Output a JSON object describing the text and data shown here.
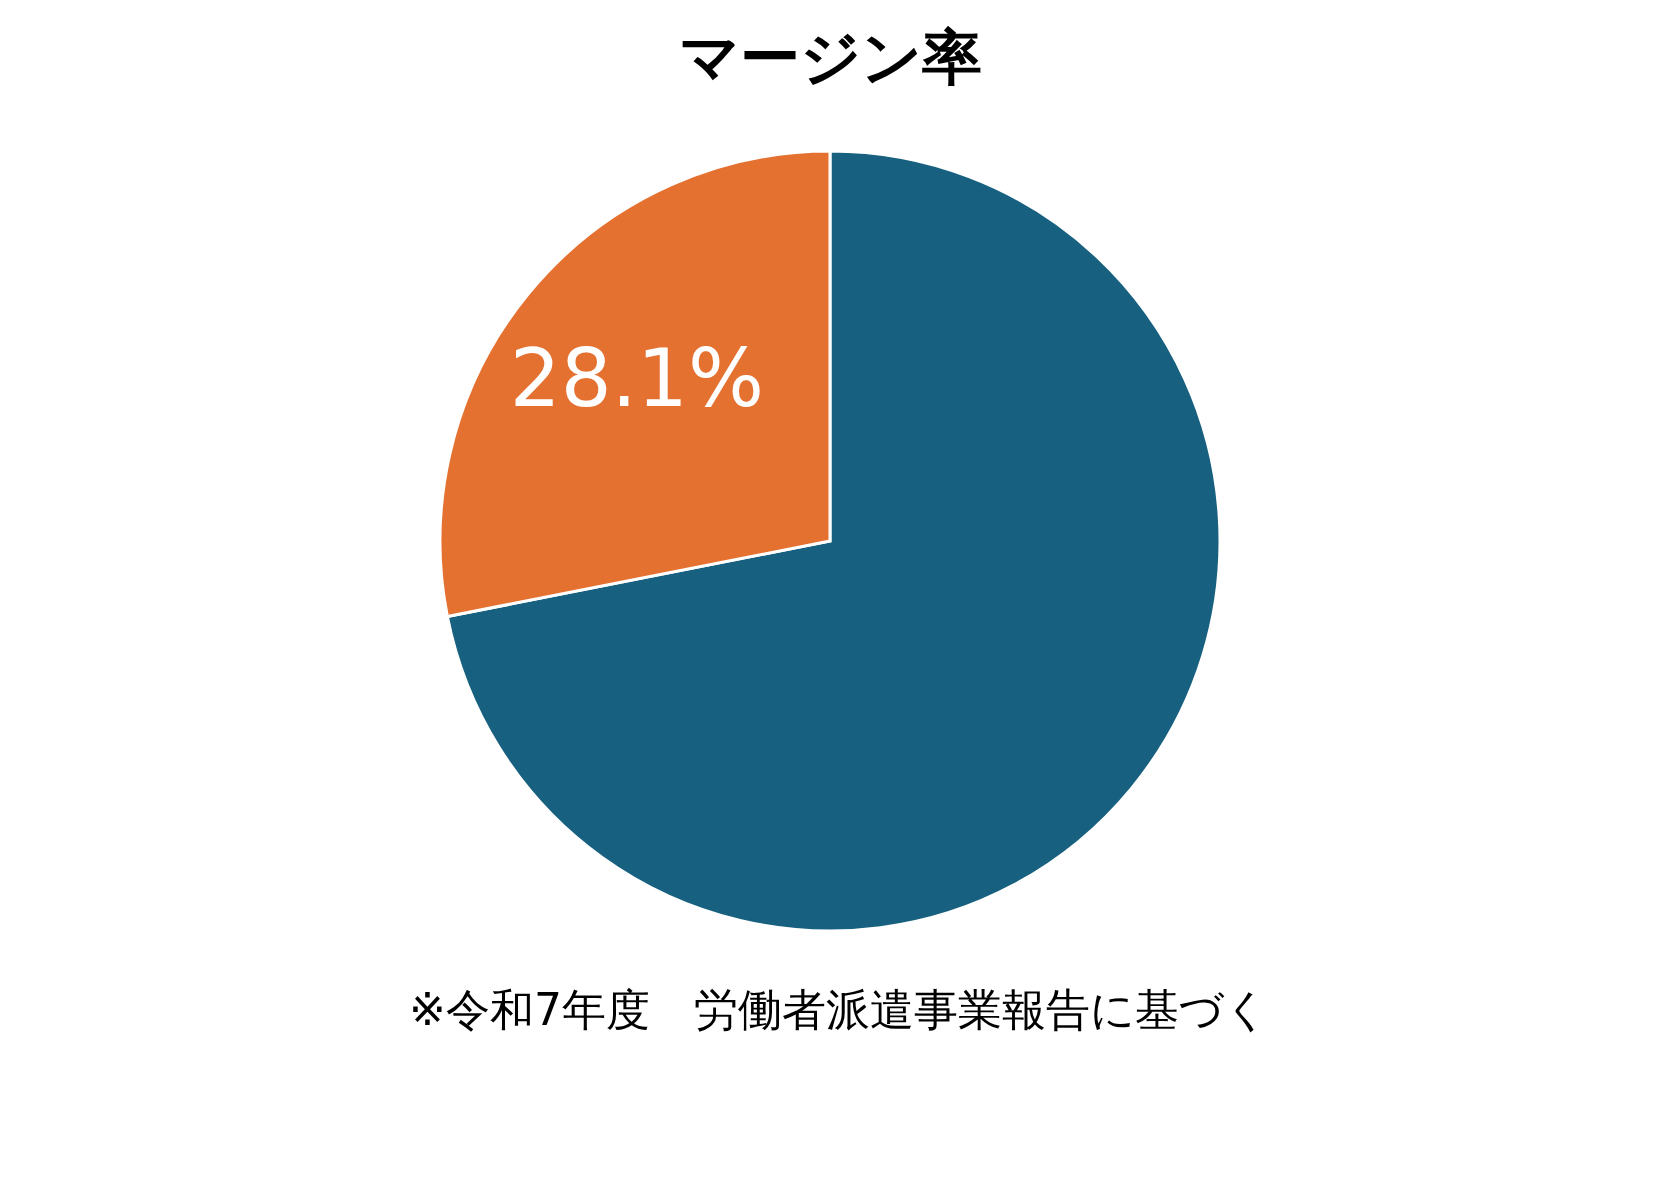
{
  "chart_data": {
    "type": "pie",
    "title": "マージン率",
    "categories": [
      null,
      null
    ],
    "values": [
      71.9,
      28.1
    ],
    "colors": [
      "#17607f",
      "#e57131"
    ],
    "value_labels": [
      null,
      "28.1%"
    ],
    "legend": false,
    "annotations": [
      "※令和7年度　労働者派遣事業報告に基づく"
    ]
  }
}
